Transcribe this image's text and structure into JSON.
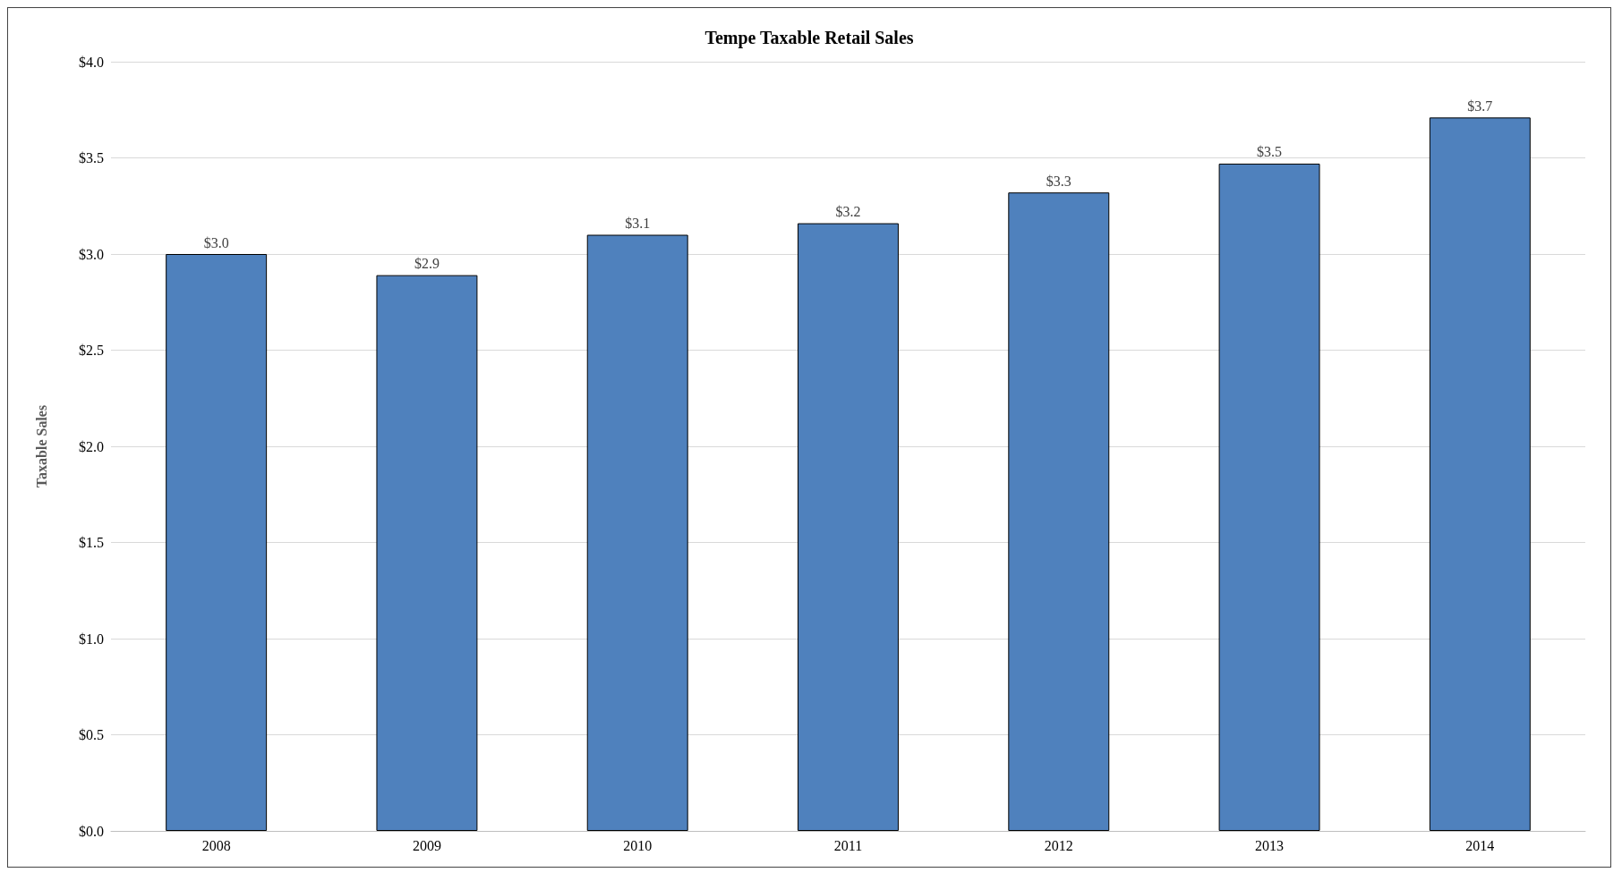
{
  "chart_data": {
    "type": "bar",
    "title": "Tempe Taxable Retail Sales",
    "ylabel": "Taxable Sales",
    "categories": [
      "2008",
      "2009",
      "2010",
      "2011",
      "2012",
      "2013",
      "2014"
    ],
    "values": [
      3.0,
      2.89,
      3.1,
      3.16,
      3.32,
      3.47,
      3.71
    ],
    "value_labels": [
      "$3.0",
      "$2.9",
      "$3.1",
      "$3.2",
      "$3.3",
      "$3.5",
      "$3.7"
    ],
    "color": "#4f81bd",
    "ylim": [
      0,
      4
    ],
    "yticks": [
      {
        "value": 0,
        "label": "$0.0"
      },
      {
        "value": 0.5,
        "label": "$0.5"
      },
      {
        "value": 1,
        "label": "$1.0"
      },
      {
        "value": 1.5,
        "label": "$1.5"
      },
      {
        "value": 2,
        "label": "$2.0"
      },
      {
        "value": 2.5,
        "label": "$2.5"
      },
      {
        "value": 3,
        "label": "$3.0"
      },
      {
        "value": 3.5,
        "label": "$3.5"
      },
      {
        "value": 4,
        "label": "$4.0"
      }
    ],
    "grid": "y"
  }
}
